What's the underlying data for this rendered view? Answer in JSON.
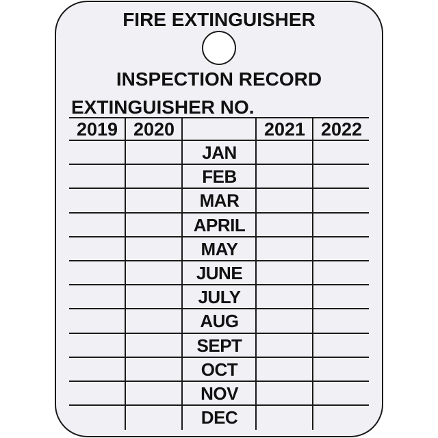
{
  "tag": {
    "title_line1": "FIRE EXTINGUISHER",
    "title_line2": "INSPECTION RECORD",
    "extinguisher_no_label": "EXTINGUISHER NO.",
    "years": [
      "2019",
      "2020",
      "2021",
      "2022"
    ],
    "months": [
      "JAN",
      "FEB",
      "MAR",
      "APRIL",
      "MAY",
      "JUNE",
      "JULY",
      "AUG",
      "SEPT",
      "OCT",
      "NOV",
      "DEC"
    ]
  }
}
